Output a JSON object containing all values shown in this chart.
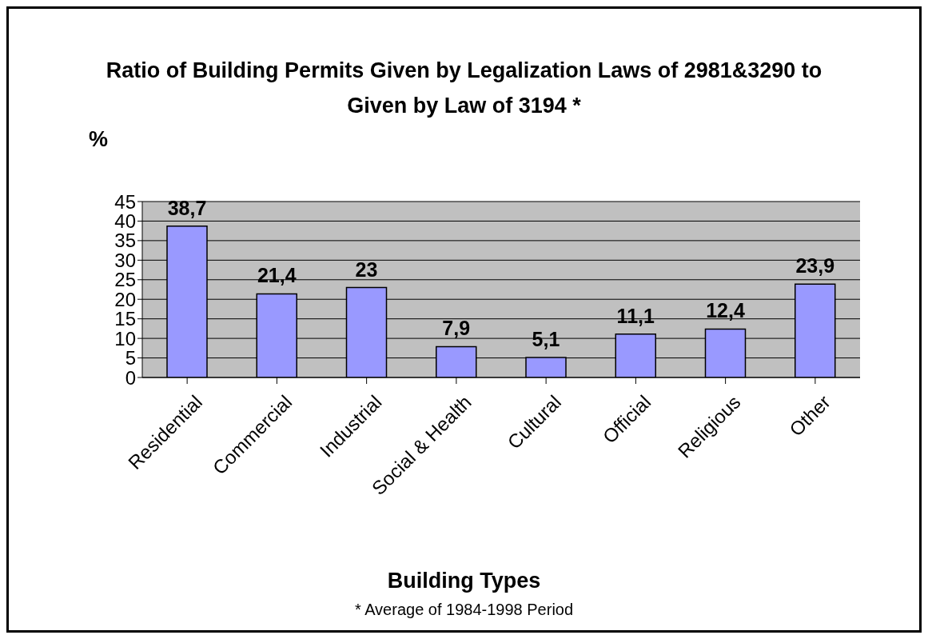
{
  "chart_data": {
    "type": "bar",
    "title": "Ratio of Building Permits Given by Legalization Laws of 2981&3290 to Given by Law of 3194 *",
    "xlabel": "Building Types",
    "ylabel": "%",
    "categories": [
      "Residential",
      "Commercial",
      "Industrial",
      "Social & Health",
      "Cultural",
      "Official",
      "Religious",
      "Other"
    ],
    "values": [
      38.7,
      21.4,
      23,
      7.9,
      5.1,
      11.1,
      12.4,
      23.9
    ],
    "value_labels": [
      "38,7",
      "21,4",
      "23",
      "7,9",
      "5,1",
      "11,1",
      "12,4",
      "23,9"
    ],
    "color": "#9999ff",
    "ylim": [
      0,
      45
    ],
    "yticks": [
      0,
      5,
      10,
      15,
      20,
      25,
      30,
      35,
      40,
      45
    ],
    "grid": "y",
    "annotations": [
      "* Average of 1984-1998 Period"
    ]
  }
}
